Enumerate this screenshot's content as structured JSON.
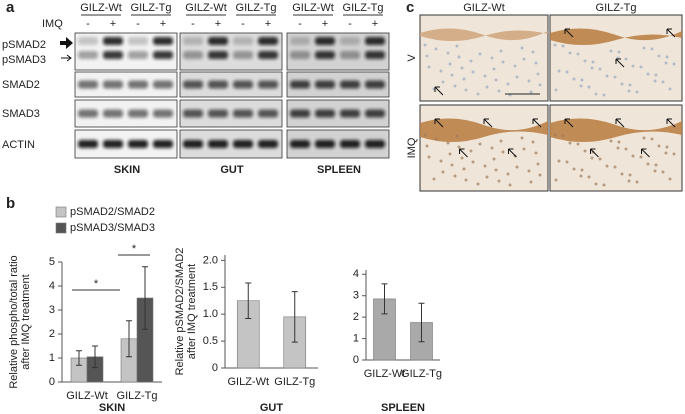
{
  "panel_a": {
    "label": "a",
    "groups": [
      "GILZ-Wt",
      "GILZ-Tg",
      "GILZ-Wt",
      "GILZ-Tg",
      "GILZ-Wt",
      "GILZ-Tg"
    ],
    "treatment": "IMQ",
    "signs": [
      "-",
      "+",
      "-",
      "+",
      "-",
      "+",
      "-",
      "+",
      "-",
      "+",
      "-",
      "+"
    ],
    "rows": [
      "pSMAD2",
      "pSMAD3",
      "SMAD2",
      "SMAD3",
      "ACTIN"
    ],
    "tissues": [
      "SKIN",
      "GUT",
      "SPLEEN"
    ]
  },
  "panel_b": {
    "label": "b"
  },
  "panel_c": {
    "label": "c",
    "columns": [
      "GILZ-Wt",
      "GILZ-Tg"
    ],
    "rows": [
      "V",
      "IMQ"
    ]
  },
  "chart_data": [
    {
      "type": "bar",
      "xlabel": "SKIN",
      "ylabel": [
        "Relative phospho/total ratio",
        "after IMQ treatment"
      ],
      "categories": [
        "GILZ-Wt",
        "GILZ-Tg"
      ],
      "series": [
        {
          "name": "pSMAD2/SMAD2",
          "color": "#c4c4c4",
          "values": [
            1.0,
            1.8
          ],
          "errors": [
            0.3,
            0.75
          ]
        },
        {
          "name": "pSMAD3/SMAD3",
          "color": "#555555",
          "values": [
            1.05,
            3.5
          ],
          "errors": [
            0.45,
            1.3
          ]
        }
      ],
      "ylim": [
        0,
        5
      ],
      "yticks": [
        0,
        1,
        2,
        3,
        4,
        5
      ],
      "annotations": [
        "*",
        "*"
      ]
    },
    {
      "type": "bar",
      "xlabel": "GUT",
      "ylabel": [
        "Relative pSMAD2/SMAD2",
        "after IMQ treatment"
      ],
      "categories": [
        "GILZ-Wt",
        "GILZ-Tg"
      ],
      "series": [
        {
          "color": "#c4c4c4",
          "values": [
            1.25,
            0.95
          ],
          "errors": [
            0.33,
            0.47
          ]
        }
      ],
      "ylim": [
        0,
        2.1
      ],
      "yticks": [
        0,
        0.5,
        {
          "value": 1.0,
          "label": "1.0"
        },
        1.5,
        {
          "value": 2.0,
          "label": "2.0"
        }
      ]
    },
    {
      "type": "bar",
      "xlabel": "SPLEEN",
      "categories": [
        "GILZ-Wt",
        "GILZ-Tg"
      ],
      "series": [
        {
          "color": "#a9a9a9",
          "values": [
            2.85,
            1.75
          ],
          "errors": [
            0.7,
            0.9
          ]
        }
      ],
      "ylim": [
        0,
        4.2
      ],
      "yticks": [
        0,
        1,
        2,
        3,
        4
      ]
    }
  ]
}
